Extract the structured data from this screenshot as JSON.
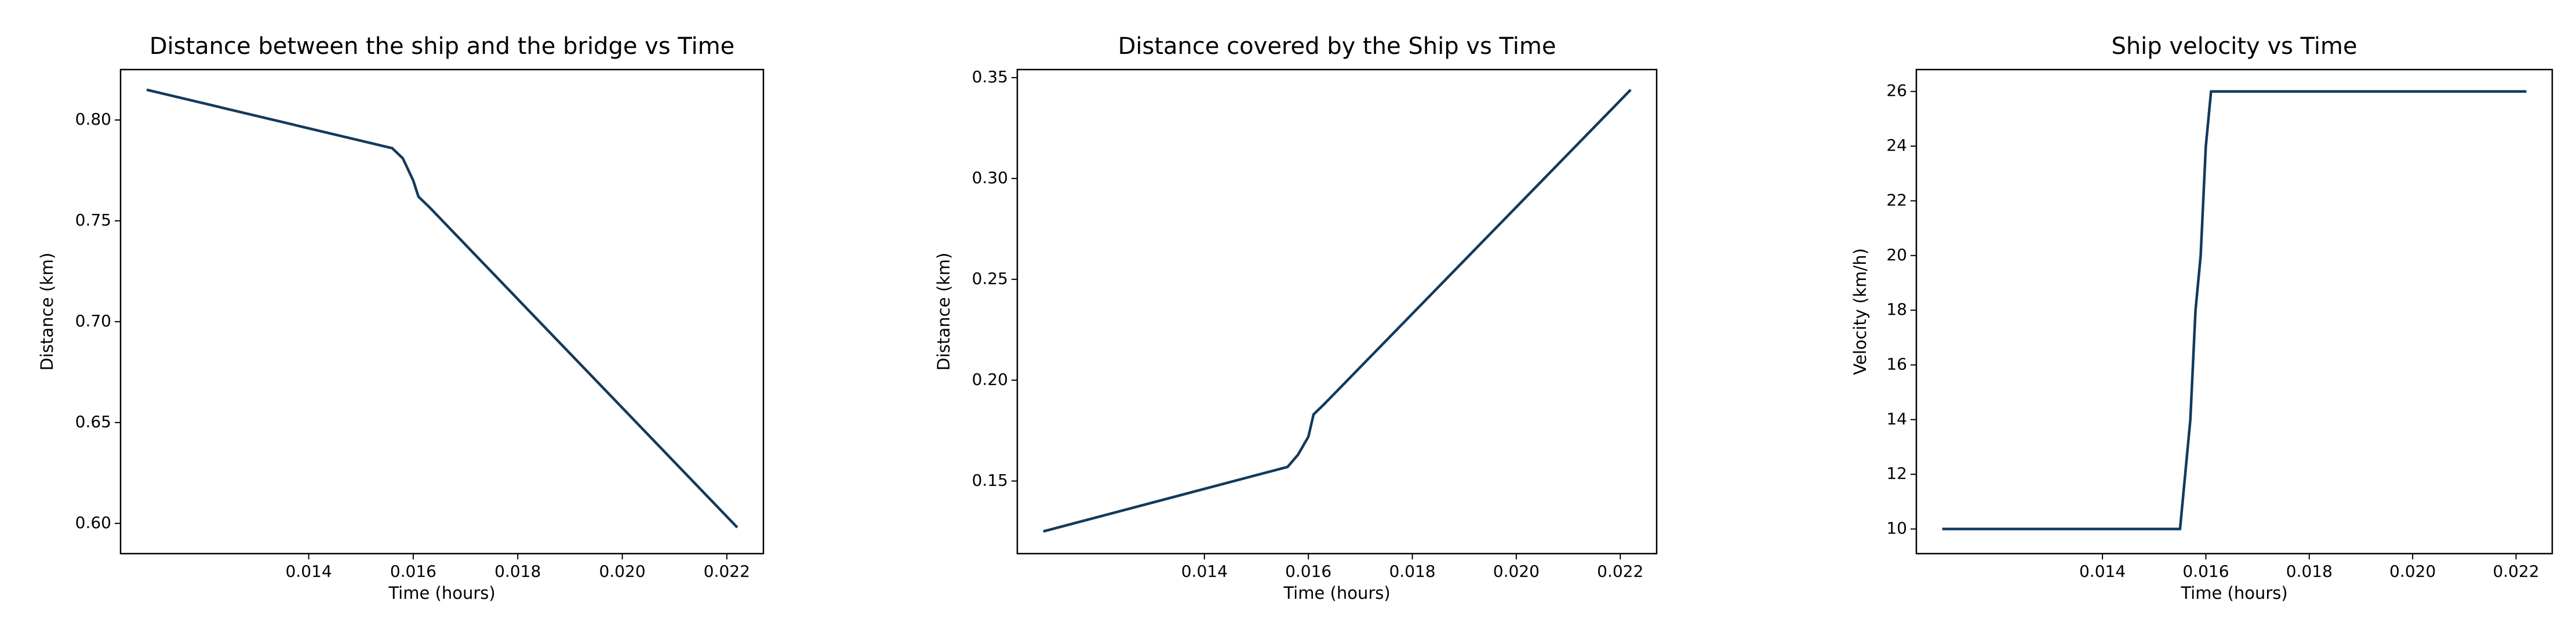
{
  "chart_data": [
    {
      "type": "line",
      "title": "Distance between the ship and the bridge vs Time",
      "xlabel": "Time (hours)",
      "ylabel": "Distance (km)",
      "x": [
        0.0109,
        0.0156,
        0.0158,
        0.016,
        0.0161,
        0.0163,
        0.0222
      ],
      "values": [
        0.815,
        0.786,
        0.781,
        0.77,
        0.762,
        0.757,
        0.598
      ],
      "color": "#123a5c",
      "xlim": [
        0.0104,
        0.0227
      ],
      "ylim": [
        0.585,
        0.825
      ],
      "xticks": [
        0.014,
        0.016,
        0.018,
        {
          "value": 0.02,
          "label": "0.020"
        },
        0.022
      ],
      "yticks": [
        {
          "value": 0.6,
          "label": "0.60"
        },
        0.65,
        {
          "value": 0.7,
          "label": "0.70"
        },
        0.75,
        {
          "value": 0.8,
          "label": "0.80"
        }
      ]
    },
    {
      "type": "line",
      "title": "Distance covered by the Ship vs Time",
      "xlabel": "Time (hours)",
      "ylabel": "Distance (km)",
      "x": [
        0.0109,
        0.0156,
        0.0158,
        0.016,
        0.0161,
        0.0163,
        0.0222
      ],
      "values": [
        0.125,
        0.157,
        0.163,
        0.172,
        0.183,
        0.188,
        0.344
      ],
      "color": "#123a5c",
      "xlim": [
        0.0104,
        0.0227
      ],
      "ylim": [
        0.114,
        0.354
      ],
      "xticks": [
        0.014,
        0.016,
        0.018,
        {
          "value": 0.02,
          "label": "0.020"
        },
        0.022
      ],
      "yticks": [
        0.15,
        {
          "value": 0.2,
          "label": "0.20"
        },
        0.25,
        {
          "value": 0.3,
          "label": "0.30"
        },
        0.35
      ]
    },
    {
      "type": "line",
      "title": "Ship velocity vs Time",
      "xlabel": "Time (hours)",
      "ylabel": "Velocity (km/h)",
      "x": [
        0.0109,
        0.0155,
        0.0157,
        0.0158,
        0.0159,
        0.016,
        0.0161,
        0.0222
      ],
      "values": [
        10,
        10,
        14,
        18,
        20,
        24,
        26,
        26
      ],
      "color": "#123a5c",
      "xlim": [
        0.0104,
        0.0227
      ],
      "ylim": [
        9.1,
        26.8
      ],
      "xticks": [
        0.014,
        0.016,
        0.018,
        {
          "value": 0.02,
          "label": "0.020"
        },
        0.022
      ],
      "yticks": [
        10,
        12,
        14,
        16,
        18,
        20,
        22,
        24,
        26
      ]
    }
  ]
}
